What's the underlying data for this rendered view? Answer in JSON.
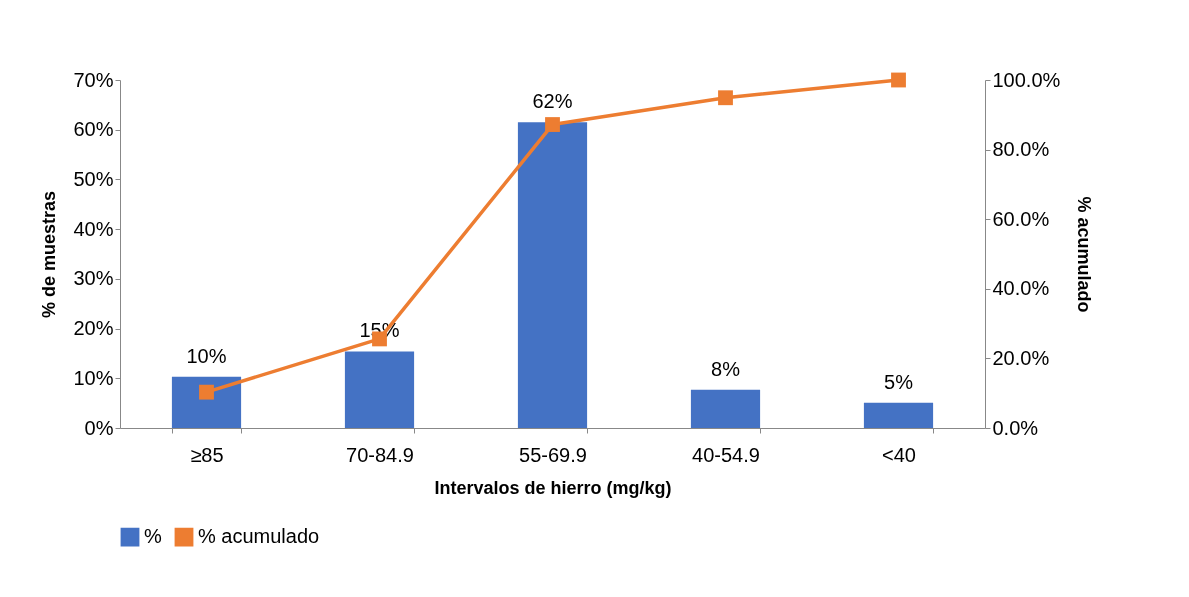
{
  "chart_data": {
    "type": "bar",
    "xlabel": "Intervalos de hierro (mg/kg)",
    "ylabel": "% de muestras",
    "y2label": "% acumulado",
    "categories": [
      "≥85",
      "70-84.9",
      "55-69.9",
      "40-54.9",
      "<40"
    ],
    "series": [
      {
        "name": "%",
        "color": "#4472c4",
        "values": [
          10.3,
          15.4,
          61.5,
          7.7,
          5.1
        ],
        "value_labels": [
          "10%",
          "15%",
          "62%",
          "8%",
          "5%"
        ]
      },
      {
        "name": "% acumulado",
        "type": "line",
        "axis": "y2",
        "color": "#ed7d31",
        "values": [
          10.3,
          25.6,
          87.2,
          94.9,
          100
        ]
      }
    ],
    "ylim": [
      0,
      70
    ],
    "yticks": [
      {
        "value": 0,
        "label": "0%"
      },
      {
        "value": 10,
        "label": "10%"
      },
      {
        "value": 20,
        "label": "20%"
      },
      {
        "value": 30,
        "label": "30%"
      },
      {
        "value": 40,
        "label": "40%"
      },
      {
        "value": 50,
        "label": "50%"
      },
      {
        "value": 60,
        "label": "60%"
      },
      {
        "value": 70,
        "label": "70%"
      }
    ],
    "y2lim": [
      0,
      100
    ],
    "y2ticks": [
      {
        "value": 0,
        "label": "0.0%"
      },
      {
        "value": 20,
        "label": "20.0%"
      },
      {
        "value": 40,
        "label": "40.0%"
      },
      {
        "value": 60,
        "label": "60.0%"
      },
      {
        "value": 80,
        "label": "80.0%"
      },
      {
        "value": 100,
        "label": "100.0%"
      }
    ],
    "grid": false,
    "legend": "bottom",
    "marker": "square",
    "line_style": "solid"
  }
}
